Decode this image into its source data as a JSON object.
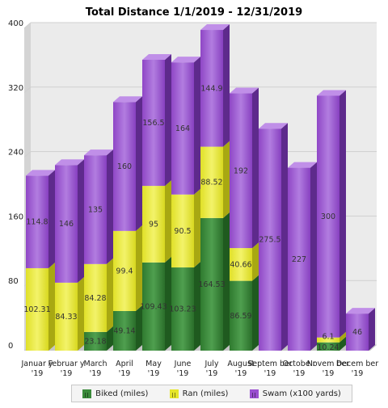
{
  "chart_data": {
    "type": "bar",
    "stacked": true,
    "title": "Total Distance 1/1/2019 - 12/31/2019",
    "categories": [
      "Januar y '19",
      "Februar y '19",
      "March '19",
      "April '19",
      "May '19",
      "June '19",
      "July '19",
      "August '19",
      "Septem ber '19",
      "Octobe r '19",
      "Novem ber '19",
      "Decem ber '19"
    ],
    "series": [
      {
        "name": "Biked (miles)",
        "color": "#3a8a3a",
        "values": [
          0,
          0,
          23.18,
          49.14,
          109.43,
          103.23,
          164.53,
          86.59,
          0,
          0,
          10.24,
          0
        ]
      },
      {
        "name": "Ran (miles)",
        "color": "#e6e62a",
        "values": [
          102.31,
          84.33,
          84.28,
          99.4,
          95,
          90.5,
          88.52,
          40.66,
          0,
          0,
          6.1,
          0
        ]
      },
      {
        "name": "Swam (x100 yards)",
        "color": "#9a4fd0",
        "values": [
          114.8,
          146,
          135,
          160,
          156.5,
          164,
          144.9,
          192,
          275.5,
          227,
          300,
          46
        ]
      }
    ],
    "value_labels": [
      [
        "",
        "",
        "23.18",
        "49.14",
        "109.43",
        "103.23",
        "164.53",
        "86.59",
        "",
        "",
        "10.24",
        ""
      ],
      [
        "102.31",
        "84.33",
        "84.28",
        "99.4",
        "95",
        "90.5",
        "88.52",
        "40.66",
        "",
        "",
        "6.1",
        ""
      ],
      [
        "114.8",
        "146",
        "135",
        "160",
        "156.5",
        "164",
        "144.9",
        "192",
        "275.5",
        "227",
        "300",
        "46"
      ]
    ],
    "yticks": [
      "0",
      "80",
      "160",
      "240",
      "320",
      "400"
    ],
    "ylim": [
      0,
      400
    ],
    "grid": true,
    "legend": {
      "position": "bottom",
      "items": [
        "Biked (miles)",
        "Ran (miles)",
        "Swam (x100 yards)"
      ]
    }
  }
}
